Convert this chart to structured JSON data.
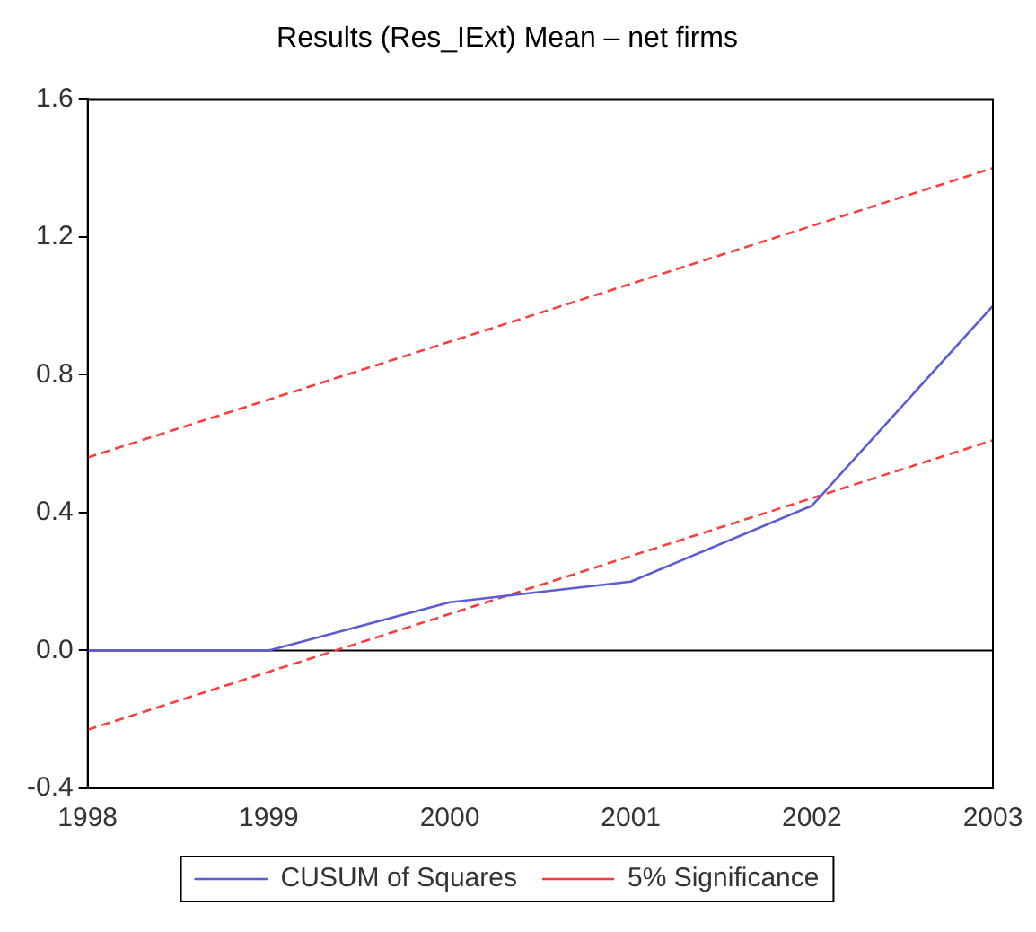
{
  "chart_data": {
    "type": "line",
    "title": "Results (Res_IExt) Mean – net firms",
    "xlim": [
      1998,
      2003
    ],
    "xticks": [
      1998,
      1999,
      2000,
      2001,
      2002,
      2003
    ],
    "ylim": [
      -0.4,
      1.6
    ],
    "yticks": [
      -0.4,
      {
        "value": 0,
        "label": "0.0"
      },
      0.4,
      0.8,
      1.2,
      1.6
    ],
    "grid": false,
    "legend": "bottom",
    "marker": "none",
    "ref_lines": [
      {
        "axis": "y",
        "value": 0,
        "color": "#000000",
        "line_style": "solid"
      }
    ],
    "series": [
      {
        "name": "CUSUM of Squares",
        "color": "#5b5bd6",
        "line_style": "solid",
        "x": [
          1998,
          1999,
          2000,
          2001,
          2002,
          2003
        ],
        "values": [
          0,
          0,
          0.14,
          0.2,
          0.42,
          1.0
        ]
      },
      {
        "name": "5% Significance",
        "color": "#ff3b3b",
        "line_style": "dashed",
        "x": [
          1998,
          2003
        ],
        "values": [
          0.56,
          1.4
        ]
      },
      {
        "color": "#ff3b3b",
        "line_style": "dashed",
        "x": [
          1998,
          2003
        ],
        "values": [
          -0.23,
          0.61
        ]
      }
    ]
  }
}
